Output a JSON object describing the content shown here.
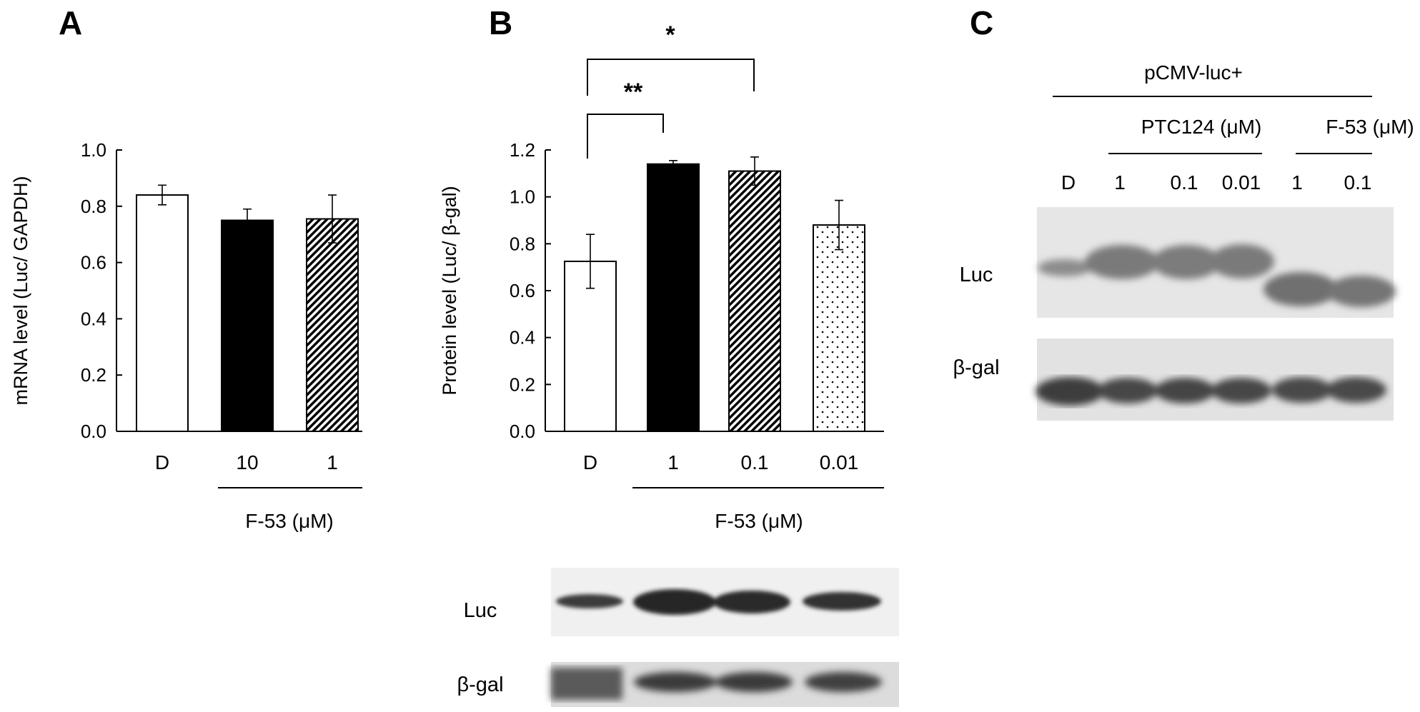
{
  "panels": {
    "A": "A",
    "B": "B",
    "C": "C"
  },
  "chart_data": [
    {
      "type": "bar",
      "panel": "A",
      "ylabel": "mRNA level (Luc/ GAPDH)",
      "ylim": [
        0,
        1.0
      ],
      "yticks": [
        "0.0",
        "0.2",
        "0.4",
        "0.6",
        "0.8",
        "1.0"
      ],
      "categories": [
        "D",
        "10",
        "1"
      ],
      "values": [
        0.84,
        0.75,
        0.755
      ],
      "errors": [
        0.035,
        0.04,
        0.085
      ],
      "fills": [
        "white",
        "black",
        "diagonal"
      ],
      "group_label": "F-53 (μM)"
    },
    {
      "type": "bar",
      "panel": "B",
      "ylabel": "Protein level (Luc/ β-gal)",
      "ylim": [
        0,
        1.2
      ],
      "yticks": [
        "0.0",
        "0.2",
        "0.4",
        "0.6",
        "0.8",
        "1.0",
        "1.2"
      ],
      "categories": [
        "D",
        "1",
        "0.1",
        "0.01"
      ],
      "values": [
        0.725,
        1.14,
        1.11,
        0.88
      ],
      "errors": [
        0.115,
        0.015,
        0.06,
        0.105
      ],
      "fills": [
        "white",
        "black",
        "diagonal",
        "dotted"
      ],
      "group_label": "F-53 (μM)",
      "significance": [
        "**",
        "*"
      ]
    }
  ],
  "blot_B": {
    "row_labels": [
      "Luc",
      "β-gal"
    ]
  },
  "blot_C": {
    "header": "pCMV-luc+",
    "groups": [
      "PTC124 (μM)",
      "F-53 (μM)"
    ],
    "lanes": [
      "D",
      "1",
      "0.1",
      "0.01",
      "1",
      "0.1"
    ],
    "row_labels": [
      "Luc",
      "β-gal"
    ]
  },
  "colors": {
    "bar_black": "#000000",
    "bar_white": "#ffffff",
    "axis": "#000000"
  }
}
